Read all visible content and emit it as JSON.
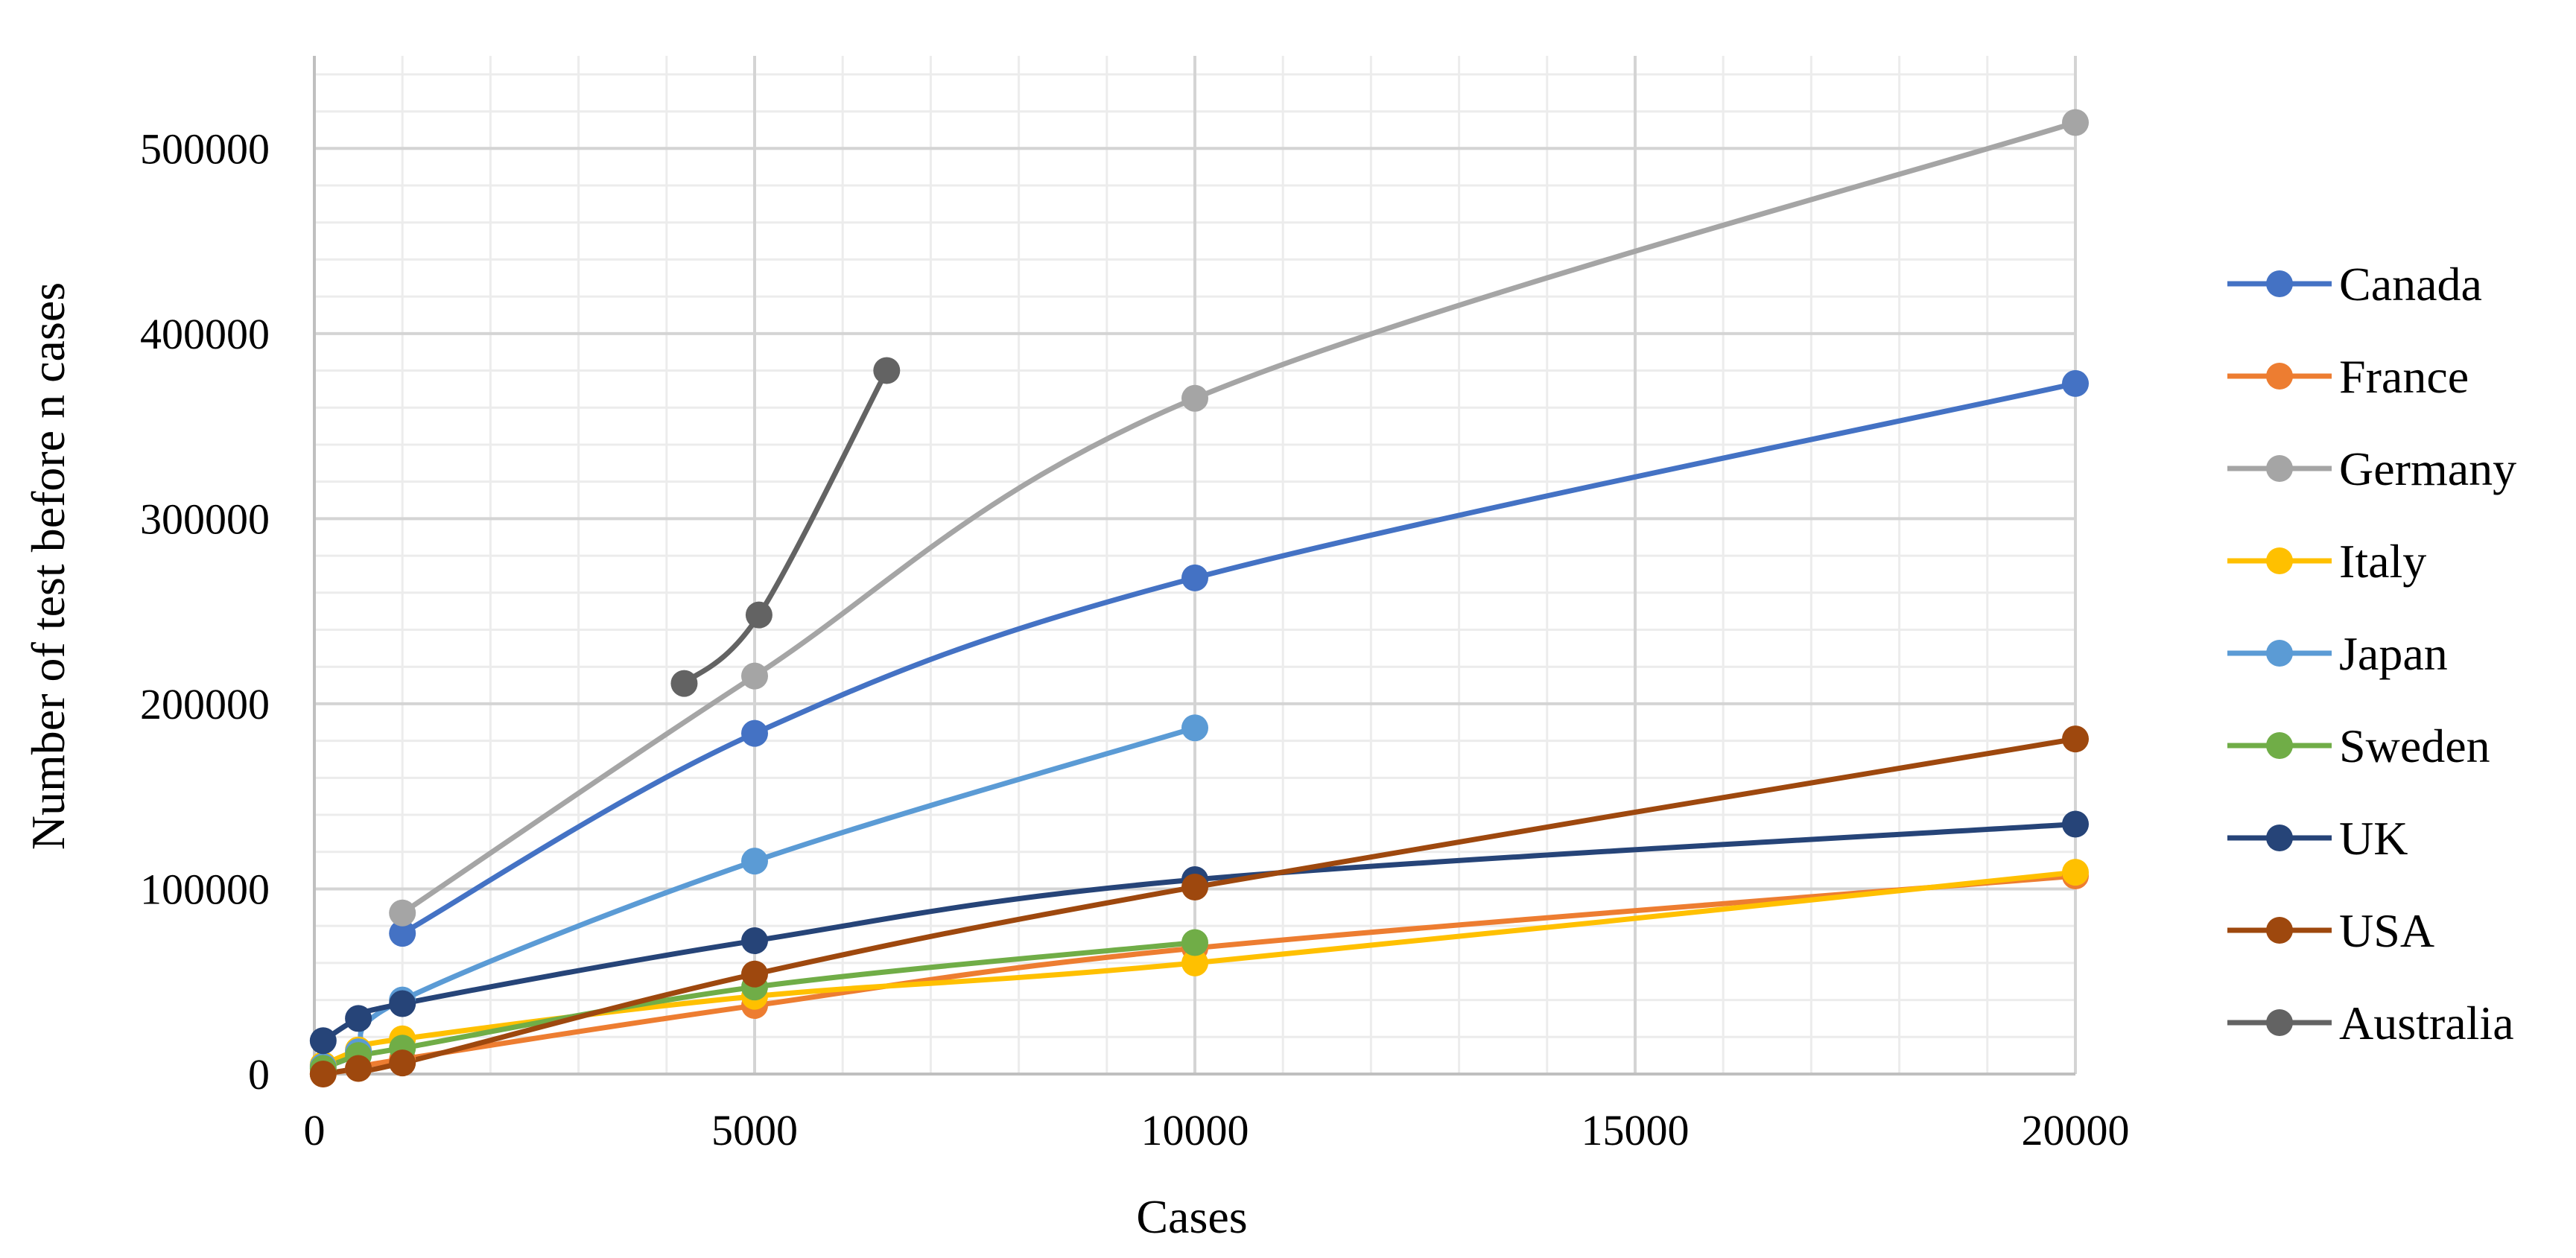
{
  "chart_data": {
    "type": "line",
    "title": "",
    "xlabel": "Cases",
    "ylabel": "Number of test before n cases",
    "xlim": [
      0,
      20000
    ],
    "ylim": [
      0,
      550000
    ],
    "x_ticks": [
      0,
      5000,
      10000,
      15000,
      20000
    ],
    "x_tick_labels": [
      "0",
      "5000",
      "10000",
      "15000",
      "20000"
    ],
    "y_ticks": [
      0,
      100000,
      200000,
      300000,
      400000,
      500000
    ],
    "y_tick_labels": [
      "0",
      "100000",
      "200000",
      "300000",
      "400000",
      "500000"
    ],
    "grid": true,
    "smooth": true,
    "legend_position": "right",
    "series": [
      {
        "name": "Canada",
        "color": "#4472C4",
        "x": [
          1000,
          5000,
          10000,
          20000
        ],
        "y": [
          76000,
          184000,
          268000,
          373000
        ]
      },
      {
        "name": "France",
        "color": "#ED7D31",
        "x": [
          100,
          500,
          1000,
          5000,
          10000,
          20000
        ],
        "y": [
          0,
          3000,
          8000,
          37000,
          68000,
          107000
        ]
      },
      {
        "name": "Germany",
        "color": "#A5A5A5",
        "x": [
          1000,
          5000,
          10000,
          20000
        ],
        "y": [
          87000,
          215000,
          365000,
          514000
        ]
      },
      {
        "name": "Italy",
        "color": "#FFC000",
        "x": [
          100,
          500,
          1000,
          5000,
          10000,
          20000
        ],
        "y": [
          5000,
          13000,
          19000,
          42000,
          60000,
          109000
        ]
      },
      {
        "name": "Japan",
        "color": "#5B9BD5",
        "x": [
          100,
          500,
          1000,
          5000,
          10000
        ],
        "y": [
          4000,
          12000,
          40000,
          115000,
          187000
        ]
      },
      {
        "name": "Sweden",
        "color": "#70AD47",
        "x": [
          100,
          500,
          1000,
          5000,
          10000
        ],
        "y": [
          3000,
          10000,
          14000,
          47000,
          71000
        ]
      },
      {
        "name": "UK",
        "color": "#264478",
        "x": [
          100,
          500,
          1000,
          5000,
          10000,
          20000
        ],
        "y": [
          18000,
          30000,
          38000,
          72000,
          105000,
          135000
        ]
      },
      {
        "name": "USA",
        "color": "#9E480E",
        "x": [
          100,
          500,
          1000,
          5000,
          10000,
          20000
        ],
        "y": [
          0,
          3000,
          6000,
          54000,
          101000,
          181000
        ]
      },
      {
        "name": "Australia",
        "color": "#636363",
        "x": [
          4200,
          5050,
          6500
        ],
        "y": [
          211000,
          248000,
          380000
        ]
      }
    ]
  }
}
